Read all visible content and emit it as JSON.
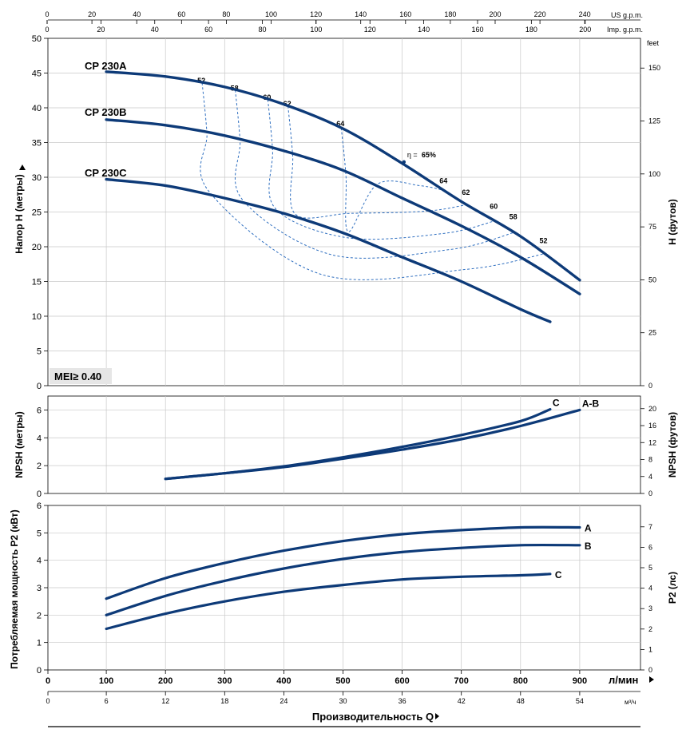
{
  "top_axes": {
    "us_gpm": {
      "label": "US g.p.m.",
      "ticks": [
        0,
        20,
        40,
        60,
        80,
        100,
        120,
        140,
        160,
        180,
        200,
        220,
        240
      ]
    },
    "imp_gpm": {
      "label": "Imp. g.p.m.",
      "ticks": [
        0,
        20,
        40,
        60,
        80,
        100,
        120,
        140,
        160,
        180,
        200
      ]
    }
  },
  "bottom_axes": {
    "lpm": {
      "unit": "л/мин",
      "ticks": [
        0,
        100,
        200,
        300,
        400,
        500,
        600,
        700,
        800,
        900
      ]
    },
    "m3h": {
      "unit": "м³/ч",
      "ticks": [
        0,
        6,
        12,
        18,
        24,
        30,
        36,
        42,
        48,
        54
      ]
    },
    "title": "Производительность Q"
  },
  "badge": "MEI≥ 0.40",
  "colors": {
    "curve": "#0d3a78",
    "grid": "#c8c8c8",
    "panel_bg": "#f0f0f0"
  },
  "chart_data": [
    {
      "type": "line",
      "ylabel": "Напор H (метры)",
      "ylabel_right": "H (футов)",
      "right_unit": "feet",
      "xlim": [
        0,
        1000
      ],
      "ylim": [
        0,
        50
      ],
      "yticks": [
        0,
        5,
        10,
        15,
        20,
        25,
        30,
        35,
        40,
        45,
        50
      ],
      "yticks_right": [
        0,
        25,
        50,
        75,
        100,
        125,
        150
      ],
      "x": [
        100,
        200,
        300,
        400,
        500,
        600,
        700,
        800,
        900
      ],
      "series": [
        {
          "name": "CP 230A",
          "x": [
            100,
            200,
            300,
            400,
            500,
            600,
            700,
            800,
            900
          ],
          "values": [
            45.2,
            44.5,
            43.0,
            40.5,
            37.0,
            32.0,
            26.5,
            21.5,
            15.2
          ]
        },
        {
          "name": "CP 230B",
          "x": [
            100,
            200,
            300,
            400,
            500,
            600,
            700,
            800,
            900
          ],
          "values": [
            38.3,
            37.5,
            36.0,
            33.8,
            31.0,
            27.0,
            23.0,
            18.5,
            13.2
          ]
        },
        {
          "name": "CP 230C",
          "x": [
            100,
            200,
            300,
            400,
            500,
            600,
            700,
            800,
            850
          ],
          "values": [
            29.7,
            28.8,
            27.0,
            24.8,
            22.0,
            18.5,
            15.0,
            11.0,
            9.2
          ]
        }
      ],
      "efficiency": {
        "prefix": "η =",
        "left_labels": [
          {
            "text": "52",
            "q": 262,
            "h": 43.2
          },
          {
            "text": "58",
            "q": 318,
            "h": 42.1
          },
          {
            "text": "60",
            "q": 373,
            "h": 40.8
          },
          {
            "text": "62",
            "q": 407,
            "h": 39.9
          },
          {
            "text": "64",
            "q": 497,
            "h": 37.0
          }
        ],
        "peak_label": {
          "text": "65%",
          "q": 603,
          "h": 32.2
        },
        "right_labels": [
          {
            "text": "64",
            "q": 671,
            "h": 28.8
          },
          {
            "text": "62",
            "q": 709,
            "h": 27.1
          },
          {
            "text": "60",
            "q": 756,
            "h": 25.1
          },
          {
            "text": "58",
            "q": 789,
            "h": 23.6
          },
          {
            "text": "52",
            "q": 840,
            "h": 20.2
          }
        ],
        "islands": [
          {
            "value": 64,
            "q_top": 497,
            "q_bottom": 671,
            "bottom": 29.0
          },
          {
            "value": 62,
            "q_top": 407,
            "q_bottom": 709,
            "bottom": 24.8
          },
          {
            "value": 60,
            "q_top": 373,
            "q_bottom": 756,
            "bottom": 21.3
          },
          {
            "value": 58,
            "q_top": 318,
            "q_bottom": 789,
            "bottom": 18.8
          },
          {
            "value": 52,
            "q_top": 262,
            "q_bottom": 840,
            "bottom": 16.0
          }
        ]
      }
    },
    {
      "type": "line",
      "ylabel": "NPSH (метры)",
      "ylabel_right": "NPSH (футов)",
      "xlim": [
        0,
        1000
      ],
      "ylim": [
        0,
        7
      ],
      "yticks": [
        0,
        2,
        4,
        6
      ],
      "yticks_right": [
        0,
        4,
        8,
        12,
        16,
        20
      ],
      "series": [
        {
          "name": "A-B",
          "x": [
            200,
            300,
            400,
            500,
            600,
            700,
            800,
            900
          ],
          "values": [
            1.05,
            1.45,
            1.9,
            2.5,
            3.15,
            3.9,
            4.85,
            6.0
          ]
        },
        {
          "name": "C",
          "x": [
            200,
            300,
            400,
            500,
            600,
            700,
            800,
            850
          ],
          "values": [
            1.05,
            1.45,
            1.95,
            2.6,
            3.35,
            4.2,
            5.2,
            6.05
          ]
        }
      ]
    },
    {
      "type": "line",
      "ylabel": "Потребляемая мощность P2 (кВт)",
      "ylabel_right": "P2 (лс)",
      "xlim": [
        0,
        1000
      ],
      "ylim": [
        0,
        6
      ],
      "yticks": [
        0,
        1,
        2,
        3,
        4,
        5,
        6
      ],
      "yticks_right": [
        0,
        1,
        2,
        3,
        4,
        5,
        6,
        7
      ],
      "series": [
        {
          "name": "A",
          "x": [
            100,
            200,
            300,
            400,
            500,
            600,
            700,
            800,
            900
          ],
          "values": [
            2.6,
            3.35,
            3.9,
            4.35,
            4.7,
            4.95,
            5.1,
            5.2,
            5.2
          ]
        },
        {
          "name": "B",
          "x": [
            100,
            200,
            300,
            400,
            500,
            600,
            700,
            800,
            900
          ],
          "values": [
            2.0,
            2.7,
            3.25,
            3.7,
            4.05,
            4.3,
            4.45,
            4.55,
            4.55
          ]
        },
        {
          "name": "C",
          "x": [
            100,
            200,
            300,
            400,
            500,
            600,
            700,
            800,
            850
          ],
          "values": [
            1.5,
            2.05,
            2.5,
            2.85,
            3.1,
            3.3,
            3.4,
            3.45,
            3.5
          ]
        }
      ]
    }
  ]
}
